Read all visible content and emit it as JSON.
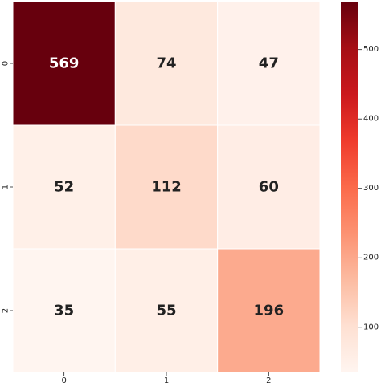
{
  "chart_data": {
    "type": "heatmap",
    "row_labels": [
      "0",
      "1",
      "2"
    ],
    "col_labels": [
      "0",
      "1",
      "2"
    ],
    "values": [
      [
        569,
        74,
        47
      ],
      [
        52,
        112,
        60
      ],
      [
        35,
        55,
        196
      ]
    ],
    "colorbar": {
      "min": 35,
      "max": 569,
      "ticks": [
        100,
        200,
        300,
        400,
        500
      ],
      "tick_labels": [
        "100",
        "200",
        "300",
        "400",
        "500"
      ]
    },
    "colormap": "Reds",
    "grid": false
  },
  "colors": {
    "low": "#fff5f0",
    "high": "#67000d",
    "text_dark": "#222222",
    "text_light": "#ffffff",
    "cell_border": "#ffffff"
  }
}
